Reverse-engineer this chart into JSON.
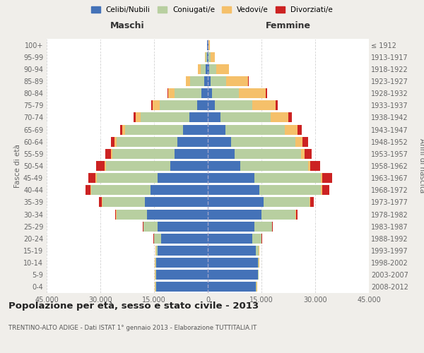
{
  "age_groups": [
    "0-4",
    "5-9",
    "10-14",
    "15-19",
    "20-24",
    "25-29",
    "30-34",
    "35-39",
    "40-44",
    "45-49",
    "50-54",
    "55-59",
    "60-64",
    "65-69",
    "70-74",
    "75-79",
    "80-84",
    "85-89",
    "90-94",
    "95-99",
    "100+"
  ],
  "birth_years": [
    "2008-2012",
    "2003-2007",
    "1998-2002",
    "1993-1997",
    "1988-1992",
    "1983-1987",
    "1978-1982",
    "1973-1977",
    "1968-1972",
    "1963-1967",
    "1958-1962",
    "1953-1957",
    "1948-1952",
    "1943-1947",
    "1938-1942",
    "1933-1937",
    "1928-1932",
    "1923-1927",
    "1918-1922",
    "1913-1917",
    "≤ 1912"
  ],
  "maschi": {
    "celibi": [
      14500,
      14500,
      14500,
      14000,
      13000,
      14000,
      17000,
      17500,
      16000,
      14000,
      10500,
      9200,
      8500,
      7000,
      5200,
      3000,
      1800,
      900,
      500,
      200,
      100
    ],
    "coniugati": [
      200,
      200,
      200,
      500,
      2000,
      4000,
      8500,
      12000,
      16500,
      17000,
      18000,
      17500,
      17000,
      16000,
      13500,
      10500,
      7500,
      4000,
      1500,
      400,
      100
    ],
    "vedovi": [
      50,
      50,
      50,
      50,
      50,
      50,
      100,
      100,
      200,
      300,
      400,
      400,
      600,
      800,
      1500,
      1800,
      1800,
      1200,
      700,
      200,
      50
    ],
    "divorziati": [
      20,
      20,
      20,
      30,
      50,
      100,
      300,
      700,
      1500,
      2000,
      2200,
      1500,
      900,
      700,
      600,
      400,
      200,
      100,
      50,
      30,
      10
    ]
  },
  "femmine": {
    "nubili": [
      13500,
      14000,
      14000,
      13500,
      12500,
      13000,
      15000,
      15500,
      14500,
      13000,
      9000,
      7500,
      6500,
      5000,
      3500,
      2000,
      1200,
      700,
      400,
      200,
      100
    ],
    "coniugate": [
      200,
      200,
      300,
      800,
      2500,
      5000,
      9500,
      13000,
      17000,
      18500,
      19000,
      18500,
      18000,
      16500,
      14000,
      10500,
      7500,
      4500,
      2000,
      500,
      100
    ],
    "vedove": [
      50,
      50,
      50,
      50,
      50,
      50,
      100,
      200,
      400,
      500,
      600,
      1000,
      2000,
      3500,
      5000,
      6500,
      7500,
      6000,
      3500,
      1200,
      300
    ],
    "divorziate": [
      20,
      20,
      20,
      30,
      80,
      150,
      400,
      900,
      2000,
      2800,
      2800,
      2000,
      1500,
      1200,
      900,
      600,
      300,
      150,
      80,
      30,
      10
    ]
  },
  "colors": {
    "celibi_nubili": "#4472b8",
    "coniugati": "#b8cfa0",
    "vedovi": "#f5c06a",
    "divorziati": "#cc2222"
  },
  "xlim": 45000,
  "title": "Popolazione per età, sesso e stato civile - 2013",
  "subtitle": "TRENTINO-ALTO ADIGE - Dati ISTAT 1° gennaio 2013 - Elaborazione TUTTITALIA.IT",
  "label_maschi": "Maschi",
  "label_femmine": "Femmine",
  "ylabel_left": "Fasce di età",
  "ylabel_right": "Anni di nascita",
  "bg_color": "#f0eeea",
  "plot_bg": "#ffffff",
  "legend_items": [
    "Celibi/Nubili",
    "Coniugati/e",
    "Vedovi/e",
    "Divorziati/e"
  ],
  "xtick_positions": [
    -45000,
    -30000,
    -15000,
    0,
    15000,
    30000,
    45000
  ],
  "xtick_labels": [
    "45.000",
    "30.000",
    "15.000",
    "0",
    "15.000",
    "30.000",
    "45.000"
  ]
}
